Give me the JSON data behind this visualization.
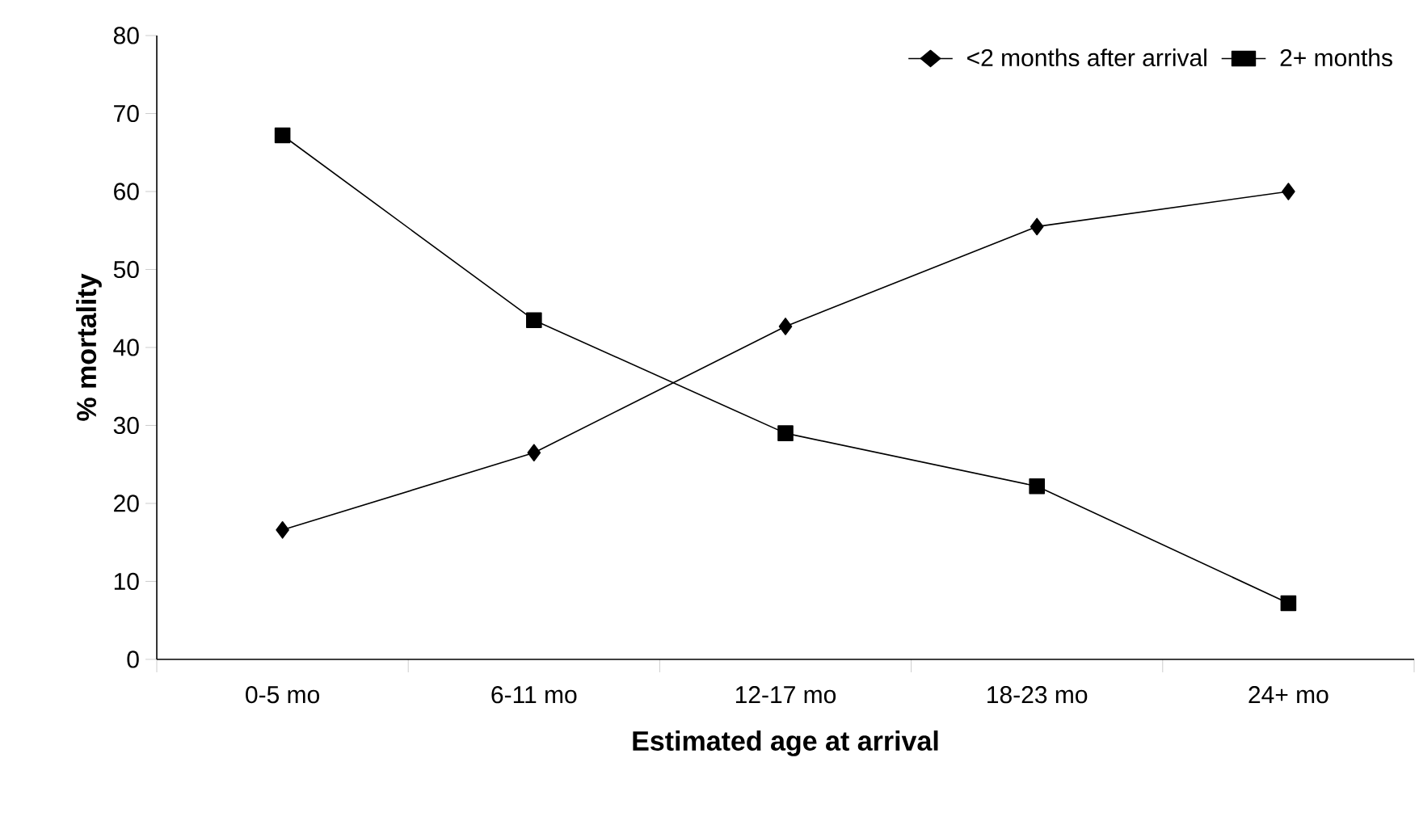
{
  "chart_data": {
    "type": "line",
    "xlabel": "Estimated age at arrival",
    "ylabel": "% mortality",
    "categories": [
      "0-5 mo",
      "6-11 mo",
      "12-17 mo",
      "18-23 mo",
      "24+ mo"
    ],
    "series": [
      {
        "name": "<2 months after arrival",
        "color": "#000000",
        "marker": "diamond",
        "values": [
          16.6,
          26.5,
          42.7,
          55.5,
          60
        ]
      },
      {
        "name": "2+ months",
        "color": "#000000",
        "marker": "square",
        "values": [
          67.2,
          43.5,
          29,
          22.2,
          7.2
        ]
      }
    ],
    "ylim": [
      0,
      80
    ],
    "yticks": [
      0,
      10,
      20,
      30,
      40,
      50,
      60,
      70,
      80
    ],
    "legend": "top right",
    "line_style": "solid"
  }
}
